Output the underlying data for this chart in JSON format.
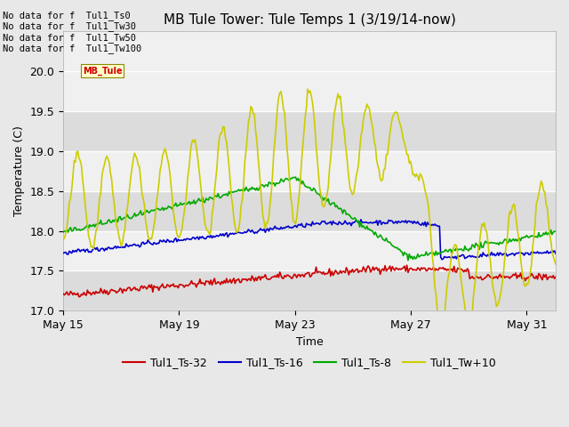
{
  "title": "MB Tule Tower: Tule Temps 1 (3/19/14-now)",
  "xlabel": "Time",
  "ylabel": "Temperature (C)",
  "ylim": [
    17.0,
    20.5
  ],
  "yticks": [
    17.0,
    17.5,
    18.0,
    18.5,
    19.0,
    19.5,
    20.0
  ],
  "background_color": "#e8e8e8",
  "plot_bg_color": "#f0f0f0",
  "stripe_color": "#dcdcdc",
  "no_data_lines": [
    "No data for f  Tul1_Ts0",
    "No data for f  Tul1_Tw30",
    "No data for f  Tul1_Tw50",
    "No data for f  Tul1_Tw100"
  ],
  "legend_entries": [
    {
      "label": "Tul1_Ts-32",
      "color": "#cc0000"
    },
    {
      "label": "Tul1_Ts-16",
      "color": "#0000cc"
    },
    {
      "label": "Tul1_Ts-8",
      "color": "#00aa00"
    },
    {
      "label": "Tul1_Tw+10",
      "color": "#cccc00"
    }
  ],
  "xtick_labels": [
    "May 15",
    "May 19",
    "May 23",
    "May 27",
    "May 31"
  ],
  "xtick_positions": [
    0,
    4,
    8,
    12,
    16
  ],
  "seed": 42
}
